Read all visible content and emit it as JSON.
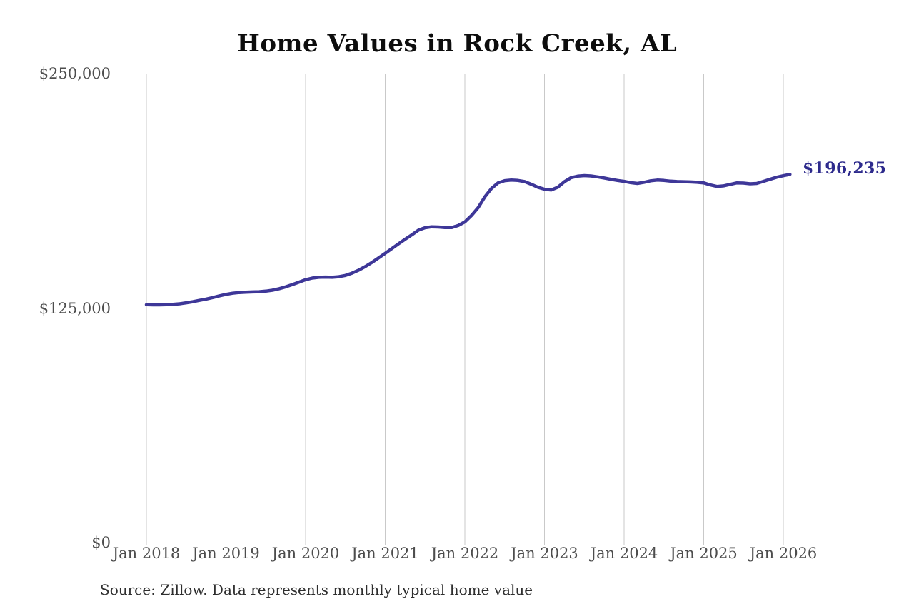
{
  "chart_data": {
    "type": "line",
    "title": "Home Values in Rock Creek, AL",
    "end_label": "$196,235",
    "end_value": 196235,
    "source_note": "Source: Zillow. Data represents monthly typical home value",
    "legend_position": "none",
    "grid": "vertical-only",
    "line_color": "#3e3798",
    "end_label_color": "#2d2a8c",
    "gridline_color": "#c9c9c9",
    "axis_label_color": "#4d4d4d",
    "ylim": [
      0,
      250000
    ],
    "y_ticks": [
      {
        "label": "$250,000",
        "value": 250000
      },
      {
        "label": "$125,000",
        "value": 125000
      },
      {
        "label": "$0",
        "value": 0
      }
    ],
    "x_ticks": [
      "Jan 2018",
      "Jan 2019",
      "Jan 2020",
      "Jan 2021",
      "Jan 2022",
      "Jan 2023",
      "Jan 2024",
      "Jan 2025",
      "Jan 2026"
    ],
    "x": [
      "2018-01",
      "2018-02",
      "2018-03",
      "2018-04",
      "2018-05",
      "2018-06",
      "2018-07",
      "2018-08",
      "2018-09",
      "2018-10",
      "2018-11",
      "2018-12",
      "2019-01",
      "2019-02",
      "2019-03",
      "2019-04",
      "2019-05",
      "2019-06",
      "2019-07",
      "2019-08",
      "2019-09",
      "2019-10",
      "2019-11",
      "2019-12",
      "2020-01",
      "2020-02",
      "2020-03",
      "2020-04",
      "2020-05",
      "2020-06",
      "2020-07",
      "2020-08",
      "2020-09",
      "2020-10",
      "2020-11",
      "2020-12",
      "2021-01",
      "2021-02",
      "2021-03",
      "2021-04",
      "2021-05",
      "2021-06",
      "2021-07",
      "2021-08",
      "2021-09",
      "2021-10",
      "2021-11",
      "2021-12",
      "2022-01",
      "2022-02",
      "2022-03",
      "2022-04",
      "2022-05",
      "2022-06",
      "2022-07",
      "2022-08",
      "2022-09",
      "2022-10",
      "2022-11",
      "2022-12",
      "2023-01",
      "2023-02",
      "2023-03",
      "2023-04",
      "2023-05",
      "2023-06",
      "2023-07",
      "2023-08",
      "2023-09",
      "2023-10",
      "2023-11",
      "2023-12",
      "2024-01",
      "2024-02",
      "2024-03",
      "2024-04",
      "2024-05",
      "2024-06",
      "2024-07",
      "2024-08",
      "2024-09",
      "2024-10",
      "2024-11",
      "2024-12",
      "2025-01",
      "2025-02",
      "2025-03",
      "2025-04",
      "2025-05",
      "2025-06",
      "2025-07",
      "2025-08",
      "2025-09",
      "2025-10",
      "2025-11",
      "2025-12",
      "2026-01",
      "2026-02"
    ],
    "values": [
      126800,
      126700,
      126700,
      126800,
      127000,
      127300,
      127800,
      128400,
      129100,
      129800,
      130600,
      131500,
      132300,
      132900,
      133300,
      133500,
      133600,
      133700,
      134000,
      134500,
      135300,
      136300,
      137500,
      138800,
      140100,
      141000,
      141400,
      141500,
      141400,
      141700,
      142400,
      143600,
      145200,
      147100,
      149300,
      151700,
      154200,
      156700,
      159200,
      161700,
      164000,
      166500,
      167800,
      168300,
      168200,
      167900,
      167900,
      169000,
      170900,
      174300,
      178500,
      184200,
      188700,
      191700,
      192900,
      193200,
      193000,
      192400,
      191000,
      189400,
      188300,
      187900,
      189400,
      192300,
      194500,
      195300,
      195600,
      195400,
      194900,
      194300,
      193600,
      193000,
      192500,
      191800,
      191400,
      192000,
      192800,
      193200,
      193000,
      192600,
      192400,
      192300,
      192200,
      192000,
      191700,
      190600,
      189800,
      190100,
      190900,
      191700,
      191600,
      191200,
      191400,
      192500,
      193600,
      194700,
      195500,
      196235
    ]
  }
}
